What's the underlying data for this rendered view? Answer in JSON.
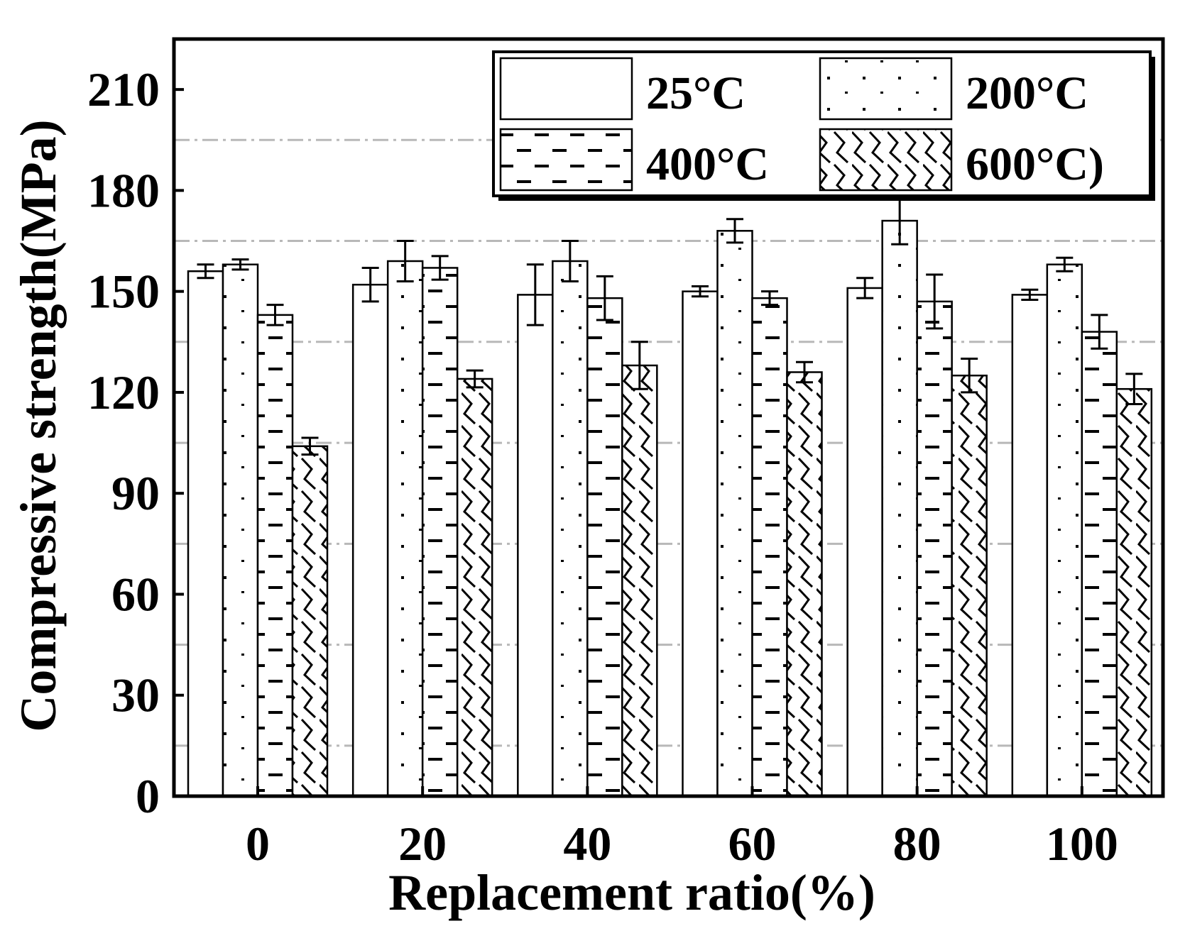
{
  "chart_data": {
    "type": "bar",
    "title": "",
    "xlabel": "Replacement ratio(%)",
    "ylabel": "Compressive strength(MPa)",
    "categories": [
      "0",
      "20",
      "40",
      "60",
      "80",
      "100"
    ],
    "ylim": [
      0,
      225
    ],
    "yticks": [
      "0",
      "30",
      "60",
      "90",
      "120",
      "150",
      "180",
      "210"
    ],
    "grid_y": [
      15,
      45,
      75,
      105,
      135,
      165,
      195,
      225
    ],
    "legend_position": "top-right",
    "series": [
      {
        "name": "25°C",
        "pattern": "plain",
        "values": [
          156,
          152,
          149,
          150,
          151,
          149
        ],
        "errors": [
          2,
          5,
          9,
          1.5,
          3,
          1.5
        ]
      },
      {
        "name": "200°C",
        "pattern": "dots",
        "values": [
          158,
          159,
          159,
          168,
          171,
          158
        ],
        "errors": [
          1.5,
          6,
          6,
          3.5,
          7,
          2
        ]
      },
      {
        "name": "400°C",
        "pattern": "dashes",
        "values": [
          143,
          157,
          148,
          148,
          147,
          138
        ],
        "errors": [
          3,
          3.5,
          6.5,
          2,
          8,
          5
        ]
      },
      {
        "name": "600°C)",
        "pattern": "waves",
        "values": [
          104,
          124,
          128,
          126,
          125,
          121
        ],
        "errors": [
          2.5,
          2.5,
          7,
          3,
          5,
          4.5
        ]
      }
    ]
  }
}
